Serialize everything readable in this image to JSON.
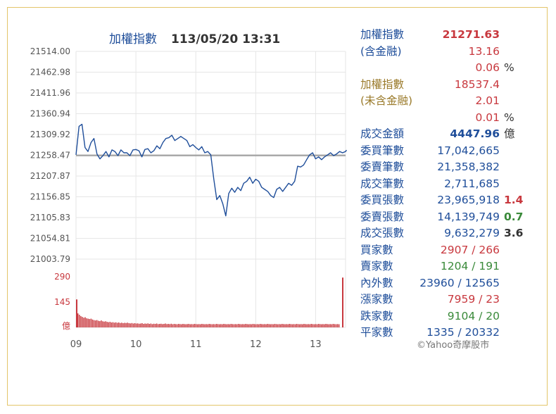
{
  "header": {
    "title_name": "加權指數",
    "title_datetime": "113/05/20 13:31"
  },
  "chart_data": [
    {
      "type": "line",
      "title": "加權指數 113/05/20 13:31",
      "x_ticks": [
        "09",
        "10",
        "11",
        "12",
        "13"
      ],
      "y_ticks": [
        "21514.00",
        "21462.98",
        "21411.96",
        "21360.94",
        "21309.92",
        "21258.47",
        "21207.87",
        "21156.85",
        "21105.83",
        "21054.81",
        "21003.79"
      ],
      "ylim": [
        21003.79,
        21514.0
      ],
      "reference_line": 21258.47,
      "grid": true,
      "series": [
        {
          "x": [
            "09:00",
            "09:03",
            "09:06",
            "09:09",
            "09:12",
            "09:15",
            "09:18",
            "09:21",
            "09:24",
            "09:27",
            "09:30",
            "09:33",
            "09:36",
            "09:39",
            "09:42",
            "09:45",
            "09:48",
            "09:51",
            "09:54",
            "09:57",
            "10:00",
            "10:03",
            "10:06",
            "10:09",
            "10:12",
            "10:15",
            "10:18",
            "10:21",
            "10:24",
            "10:27",
            "10:30",
            "10:33",
            "10:36",
            "10:39",
            "10:42",
            "10:45",
            "10:48",
            "10:51",
            "10:54",
            "10:57",
            "11:00",
            "11:03",
            "11:06",
            "11:09",
            "11:12",
            "11:15",
            "11:18",
            "11:21",
            "11:24",
            "11:27",
            "11:30",
            "11:33",
            "11:36",
            "11:39",
            "11:42",
            "11:45",
            "11:48",
            "11:51",
            "11:54",
            "11:57",
            "12:00",
            "12:03",
            "12:06",
            "12:09",
            "12:12",
            "12:15",
            "12:18",
            "12:21",
            "12:24",
            "12:27",
            "12:30",
            "12:33",
            "12:36",
            "12:39",
            "12:42",
            "12:45",
            "12:48",
            "12:51",
            "12:54",
            "12:57",
            "13:00",
            "13:03",
            "13:06",
            "13:09",
            "13:12",
            "13:15",
            "13:18",
            "13:21",
            "13:24",
            "13:27",
            "13:30",
            "13:31"
          ],
          "values": [
            21260,
            21330,
            21335,
            21278,
            21268,
            21290,
            21300,
            21262,
            21250,
            21258,
            21268,
            21255,
            21272,
            21268,
            21258,
            21272,
            21265,
            21265,
            21258,
            21272,
            21273,
            21270,
            21255,
            21273,
            21275,
            21265,
            21270,
            21282,
            21275,
            21290,
            21300,
            21302,
            21308,
            21295,
            21300,
            21305,
            21300,
            21295,
            21280,
            21285,
            21278,
            21272,
            21280,
            21265,
            21268,
            21260,
            21200,
            21150,
            21160,
            21140,
            21110,
            21165,
            21178,
            21168,
            21180,
            21172,
            21190,
            21195,
            21205,
            21190,
            21200,
            21195,
            21180,
            21175,
            21170,
            21160,
            21155,
            21175,
            21180,
            21170,
            21180,
            21190,
            21185,
            21195,
            21232,
            21230,
            21235,
            21248,
            21260,
            21265,
            21250,
            21255,
            21248,
            21255,
            21260,
            21265,
            21258,
            21262,
            21268,
            21265,
            21268,
            21271.63
          ]
        }
      ]
    },
    {
      "type": "bar",
      "ylabel": "億",
      "y_ticks": [
        "290",
        "145"
      ],
      "ylim": [
        0,
        290
      ],
      "open_value": 160,
      "close_value": 285,
      "values": [
        80,
        72,
        65,
        60,
        55,
        58,
        52,
        50,
        48,
        50,
        45,
        42,
        40,
        42,
        38,
        36,
        40,
        35,
        33,
        35,
        32,
        30,
        32,
        28,
        30,
        27,
        29,
        26,
        28,
        25,
        27,
        24,
        26,
        25,
        27,
        24,
        23,
        25,
        22,
        24,
        22,
        23,
        21,
        22,
        24,
        20,
        22,
        21,
        23,
        20,
        22,
        19,
        21,
        20,
        22,
        19,
        20,
        21,
        19,
        20,
        22,
        19,
        20,
        19,
        21,
        18,
        20,
        19,
        18,
        20,
        19,
        18,
        20,
        19,
        18,
        19,
        20,
        18,
        19,
        18,
        20,
        19,
        18,
        19,
        18,
        20,
        19,
        18,
        19,
        18,
        20,
        19,
        18,
        19,
        18,
        20,
        19,
        18,
        19,
        18,
        20,
        19,
        18,
        19,
        18,
        20,
        19,
        18,
        19,
        18,
        20,
        19,
        18,
        19,
        18,
        20,
        19,
        18,
        19,
        18,
        20,
        19,
        18,
        19,
        18,
        20,
        19,
        18,
        19,
        18,
        20,
        19,
        18,
        19,
        18,
        20,
        19,
        18,
        19,
        18,
        20,
        19,
        18,
        19,
        18,
        20,
        19,
        18,
        19,
        18,
        20,
        19,
        18,
        19,
        18,
        20,
        19,
        18,
        19,
        18,
        20,
        19,
        18,
        19,
        18,
        20,
        19,
        18,
        19,
        18,
        20,
        19,
        18,
        19,
        18,
        20,
        19,
        18,
        19,
        18
      ]
    }
  ],
  "stats": {
    "rows": [
      {
        "label": "加權指數",
        "value": "21271.63",
        "lc": "blue",
        "vc": "red bold"
      },
      {
        "label": "(含金融)",
        "value": "13.16",
        "lc": "blue",
        "vc": "red"
      },
      {
        "label": "",
        "value": "0.06",
        "ext": "%",
        "lc": "blue",
        "vc": "red",
        "xc": "dark"
      },
      {
        "label": "加權指數",
        "value": "18537.4",
        "lc": "gold",
        "vc": "red"
      },
      {
        "label": "(未含金融)",
        "value": "2.01",
        "lc": "gold",
        "vc": "red"
      },
      {
        "label": "",
        "value": "0.01",
        "ext": "%",
        "lc": "gold",
        "vc": "red",
        "xc": "dark"
      },
      {
        "label": "成交金額",
        "value": "4447.96",
        "ext": "億",
        "lc": "blue",
        "vc": "blue bold",
        "xc": "dark"
      },
      {
        "label": "委買筆數",
        "value": "17,042,665",
        "lc": "blue",
        "vc": "blue"
      },
      {
        "label": "委賣筆數",
        "value": "21,358,382",
        "lc": "blue",
        "vc": "blue"
      },
      {
        "label": "成交筆數",
        "value": "2,711,685",
        "lc": "blue",
        "vc": "blue"
      },
      {
        "label": "委買張數",
        "value": "23,965,918",
        "ext": "1.4",
        "lc": "blue",
        "vc": "blue",
        "xc": "red"
      },
      {
        "label": "委賣張數",
        "value": "14,139,749",
        "ext": "0.7",
        "lc": "blue",
        "vc": "blue",
        "xc": "green"
      },
      {
        "label": "成交張數",
        "value": "9,632,279",
        "ext": "3.6",
        "lc": "blue",
        "vc": "blue",
        "xc": "dark"
      },
      {
        "label": "買家數",
        "value": "2907 / 266",
        "lc": "blue",
        "vc": "red"
      },
      {
        "label": "賣家數",
        "value": "1204 / 191",
        "lc": "blue",
        "vc": "green"
      },
      {
        "label": "內外數",
        "value": "23960 / 12565",
        "lc": "blue",
        "vc": "blue"
      },
      {
        "label": "漲家數",
        "value": "7959 / 23",
        "lc": "blue",
        "vc": "red"
      },
      {
        "label": "跌家數",
        "value": "9104 / 20",
        "lc": "blue",
        "vc": "green"
      },
      {
        "label": "平家數",
        "value": "1335 / 20332",
        "lc": "blue",
        "vc": "blue"
      }
    ]
  },
  "footer": {
    "copyright": "©Yahoo奇摩股市"
  },
  "colors": {
    "line": "#1f4e9a",
    "reference": "#a9a9a9",
    "volume": "#c8383e",
    "grid": "#e6e6e6",
    "frame": "#e3c56a"
  }
}
